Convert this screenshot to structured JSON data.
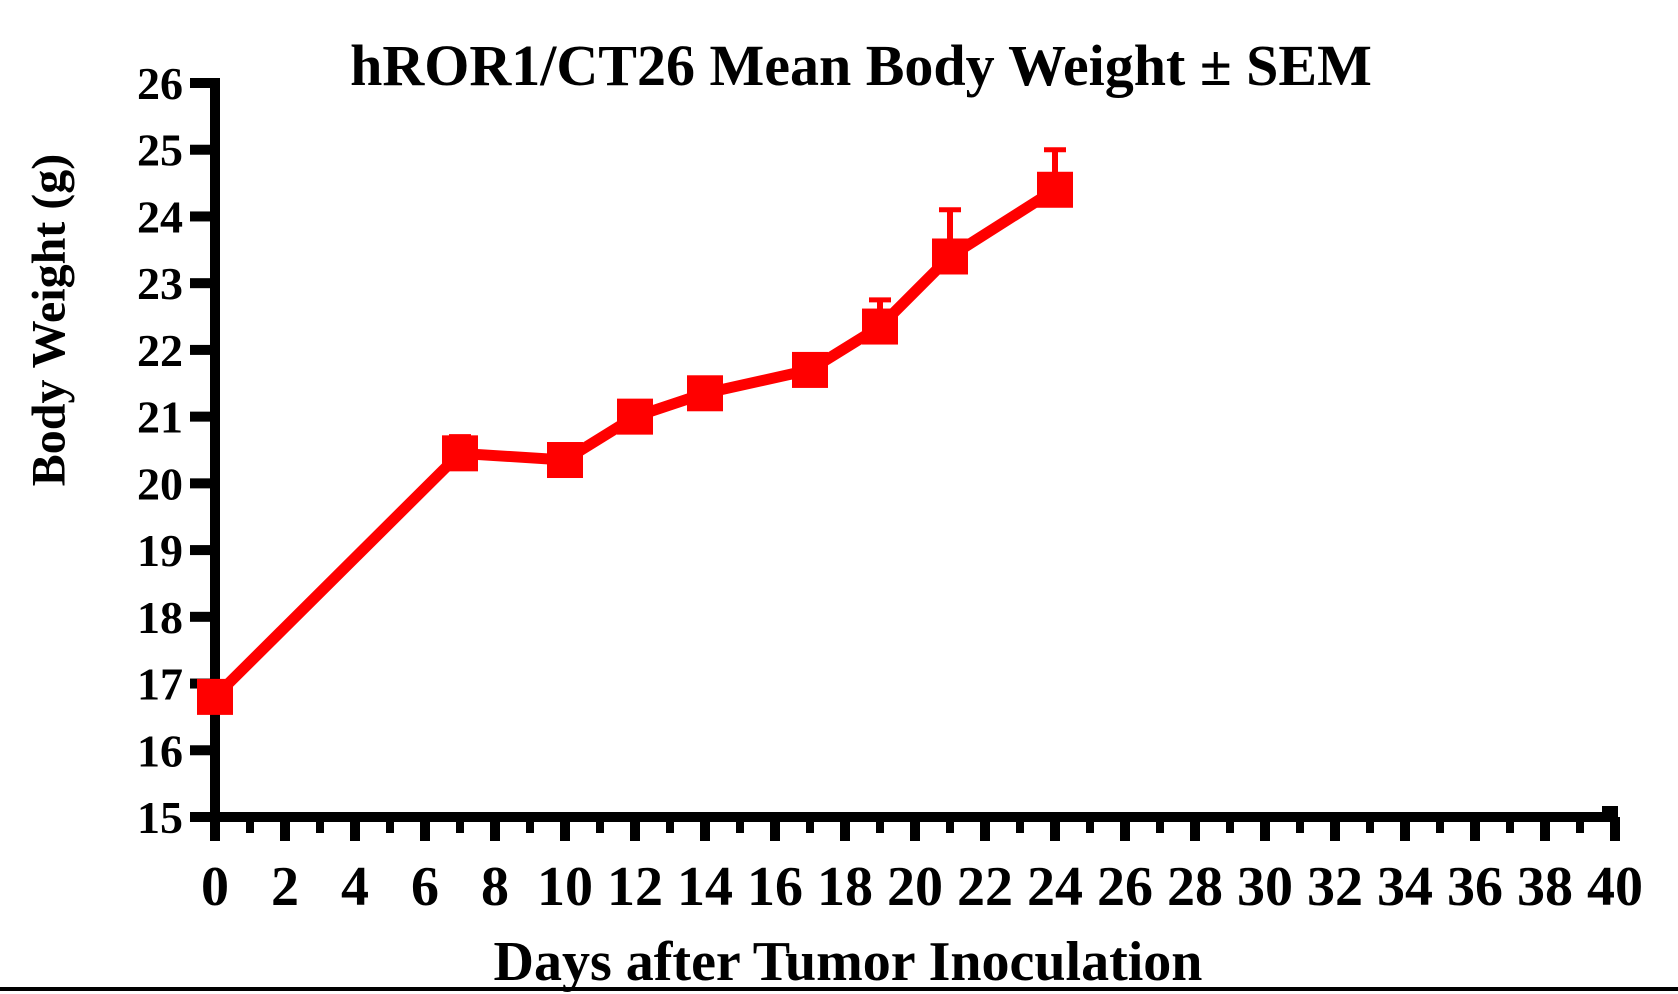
{
  "chart_data": {
    "type": "line",
    "title": "hROR1/CT26 Mean Body Weight ± SEM",
    "xlabel": "Days after Tumor Inoculation",
    "ylabel": "Body Weight (g)",
    "grid": false,
    "legend": "none",
    "error_bars": "upper SEM caps only",
    "line_color": "#ff0000",
    "axis_color": "#000000",
    "axes": {
      "x": {
        "min": 0,
        "max": 40,
        "major_tick_step": 2,
        "minor_tick_step": 1,
        "tick_labels": [
          0,
          2,
          4,
          6,
          8,
          10,
          12,
          14,
          16,
          18,
          20,
          22,
          24,
          26,
          28,
          30,
          32,
          34,
          36,
          38,
          40
        ]
      },
      "y": {
        "min": 15,
        "max": 26,
        "major_tick_step": 1,
        "tick_labels": [
          15,
          16,
          17,
          18,
          19,
          20,
          21,
          22,
          23,
          24,
          25,
          26
        ]
      }
    },
    "series": [
      {
        "name": "hROR1/CT26 mean body weight",
        "color": "#ff0000",
        "marker": "square",
        "x": [
          0,
          7,
          10,
          12,
          14,
          17,
          19,
          21,
          24
        ],
        "y": [
          16.8,
          20.45,
          20.35,
          21.0,
          21.35,
          21.7,
          22.35,
          23.4,
          24.4
        ],
        "sem_upper": [
          0,
          0.25,
          0,
          0,
          0,
          0,
          0.4,
          0.7,
          0.6
        ]
      }
    ]
  }
}
